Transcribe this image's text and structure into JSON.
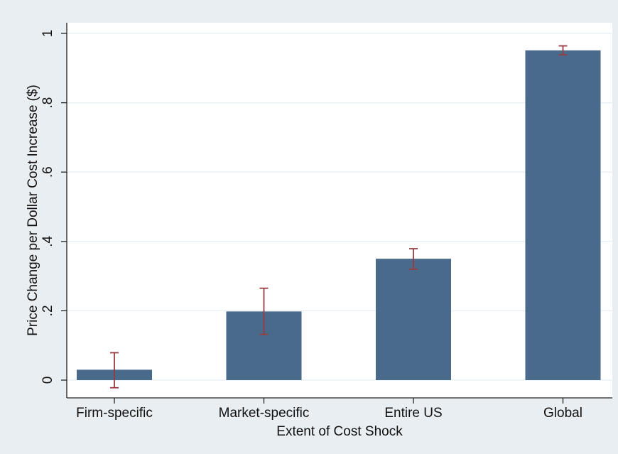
{
  "chart_data": {
    "type": "bar",
    "title": "",
    "xlabel": "Extent of Cost Shock",
    "ylabel": "Price Change per Dollar Cost Increase ($)",
    "categories": [
      "Firm-specific",
      "Market-specific",
      "Entire US",
      "Global"
    ],
    "values": [
      0.03,
      0.198,
      0.35,
      0.951
    ],
    "error_bars": [
      {
        "low": -0.022,
        "high": 0.079
      },
      {
        "low": 0.132,
        "high": 0.265
      },
      {
        "low": 0.32,
        "high": 0.379
      },
      {
        "low": 0.938,
        "high": 0.964
      }
    ],
    "ylim": [
      0,
      1
    ],
    "yticks": [
      {
        "value": 0,
        "label": "0"
      },
      {
        "value": 0.2,
        "label": ".2"
      },
      {
        "value": 0.4,
        "label": ".4"
      },
      {
        "value": 0.6,
        "label": ".6"
      },
      {
        "value": 0.8,
        "label": ".8"
      },
      {
        "value": 1,
        "label": "1"
      }
    ],
    "grid": true,
    "legend": "none",
    "colors": {
      "bar": "#4a6a8b",
      "error_bar": "#963c42",
      "outer_background": "#e9eef2",
      "plot_background": "#ffffff",
      "grid": "#eaf0f4",
      "axis": "#222222"
    }
  }
}
